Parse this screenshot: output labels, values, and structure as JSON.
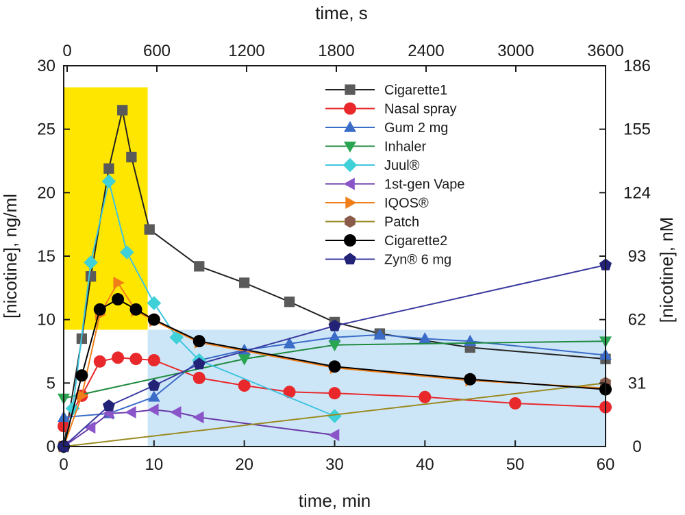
{
  "chart_data": {
    "type": "line",
    "title": "",
    "xlabel": "time, min",
    "ylabel": "[nicotine], ng/ml",
    "x2label": "time, s",
    "y2label": "[nicotine], nM",
    "xlim": [
      0,
      60
    ],
    "ylim": [
      0,
      30
    ],
    "y2lim": [
      0,
      186
    ],
    "x_ticks": [
      0,
      10,
      20,
      30,
      40,
      50,
      60
    ],
    "y_ticks": [
      0,
      5,
      10,
      15,
      20,
      25,
      30
    ],
    "x2_ticks": [
      0,
      600,
      1200,
      1800,
      2400,
      3000,
      3600
    ],
    "y2_ticks": [
      0,
      31,
      62,
      93,
      124,
      155,
      186
    ],
    "x_tick_labels": [
      "0",
      "10",
      "20",
      "30",
      "40",
      "50",
      "60"
    ],
    "y_tick_labels": [
      "0",
      "5",
      "10",
      "15",
      "20",
      "25",
      "30"
    ],
    "x2_tick_labels": [
      "0",
      "600",
      "1200",
      "1800",
      "2400",
      "3000",
      "3600"
    ],
    "y2_tick_labels": [
      "0",
      "31",
      "62",
      "93",
      "124",
      "155",
      "186"
    ],
    "grid": false,
    "legend_position": "top-right",
    "highlight_regions": [
      {
        "x": [
          0,
          9.3
        ],
        "y": [
          9.2,
          28.3
        ],
        "color": "#ffe600"
      },
      {
        "x": [
          9.3,
          60
        ],
        "y": [
          0,
          9.2
        ],
        "color": "#cde6f7"
      }
    ],
    "series": [
      {
        "name": "Cigarette1",
        "marker": "square",
        "color": "#5a5a5a",
        "line_color": "#222222",
        "x": [
          0,
          2,
          3,
          5,
          6.5,
          7.5,
          9.5,
          15,
          20,
          25,
          30,
          35,
          45,
          60
        ],
        "y": [
          0,
          8.5,
          13.4,
          21.9,
          26.5,
          22.8,
          17.1,
          14.2,
          12.9,
          11.4,
          9.8,
          8.9,
          7.8,
          6.9
        ]
      },
      {
        "name": "Nasal spray",
        "marker": "circle",
        "color": "#e8282a",
        "line_color": "#e8282a",
        "x": [
          0,
          2,
          4,
          6,
          8,
          10,
          15,
          20,
          25,
          30,
          40,
          50,
          60
        ],
        "y": [
          1.6,
          4.0,
          6.7,
          7.0,
          6.9,
          6.8,
          5.4,
          4.8,
          4.3,
          4.2,
          3.9,
          3.4,
          3.1
        ]
      },
      {
        "name": "Gum 2 mg",
        "marker": "triangle-up",
        "color": "#3a6cc8",
        "line_color": "#3a6cc8",
        "x": [
          0,
          5,
          10,
          15,
          20,
          25,
          30,
          35,
          40,
          45,
          60
        ],
        "y": [
          2.3,
          2.6,
          3.9,
          6.8,
          7.6,
          8.1,
          8.6,
          8.8,
          8.5,
          8.3,
          7.2
        ]
      },
      {
        "name": "Inhaler",
        "marker": "triangle-down",
        "color": "#2aa552",
        "line_color": "#1f8a3f",
        "x": [
          0,
          20,
          30,
          60
        ],
        "y": [
          3.8,
          6.9,
          8.0,
          8.3
        ]
      },
      {
        "name": "Juul®",
        "marker": "diamond",
        "color": "#3fd0d8",
        "line_color": "#3fc4e0",
        "x": [
          0,
          1,
          3,
          5,
          7,
          10,
          12.5,
          15,
          30
        ],
        "y": [
          0,
          3.0,
          14.5,
          20.9,
          15.3,
          11.3,
          8.6,
          6.8,
          2.4
        ]
      },
      {
        "name": "1st-gen Vape",
        "marker": "triangle-left",
        "color": "#8a55c8",
        "line_color": "#6a3aa8",
        "x": [
          0,
          3,
          5,
          7.5,
          10,
          12.5,
          15,
          30
        ],
        "y": [
          0,
          1.5,
          2.6,
          2.7,
          2.9,
          2.7,
          2.3,
          0.9
        ]
      },
      {
        "name": "IQOS®",
        "marker": "triangle-right",
        "color": "#f07f1a",
        "line_color": "#f07f1a",
        "x": [
          0,
          2,
          4,
          6,
          8,
          10,
          15,
          30,
          45,
          60
        ],
        "y": [
          0,
          4.0,
          10.4,
          12.9,
          10.7,
          9.9,
          8.2,
          6.2,
          5.2,
          4.6
        ]
      },
      {
        "name": "Patch",
        "marker": "hexagon",
        "color": "#8a5a4a",
        "line_color": "#9a8a20",
        "x": [
          0,
          60
        ],
        "y": [
          0,
          5.0
        ]
      },
      {
        "name": "Cigarette2",
        "marker": "circle",
        "color": "#000000",
        "line_color": "#000000",
        "x": [
          0,
          2,
          4,
          6,
          8,
          10,
          15,
          30,
          45,
          60
        ],
        "y": [
          0,
          5.6,
          10.8,
          11.6,
          10.8,
          10.0,
          8.3,
          6.3,
          5.3,
          4.5
        ]
      },
      {
        "name": "Zyn® 6 mg",
        "marker": "pentagon",
        "color": "#222277",
        "line_color": "#3a3aa0",
        "x": [
          0,
          5,
          10,
          15,
          30,
          60
        ],
        "y": [
          0,
          3.2,
          4.8,
          6.5,
          9.5,
          14.3
        ]
      }
    ]
  }
}
